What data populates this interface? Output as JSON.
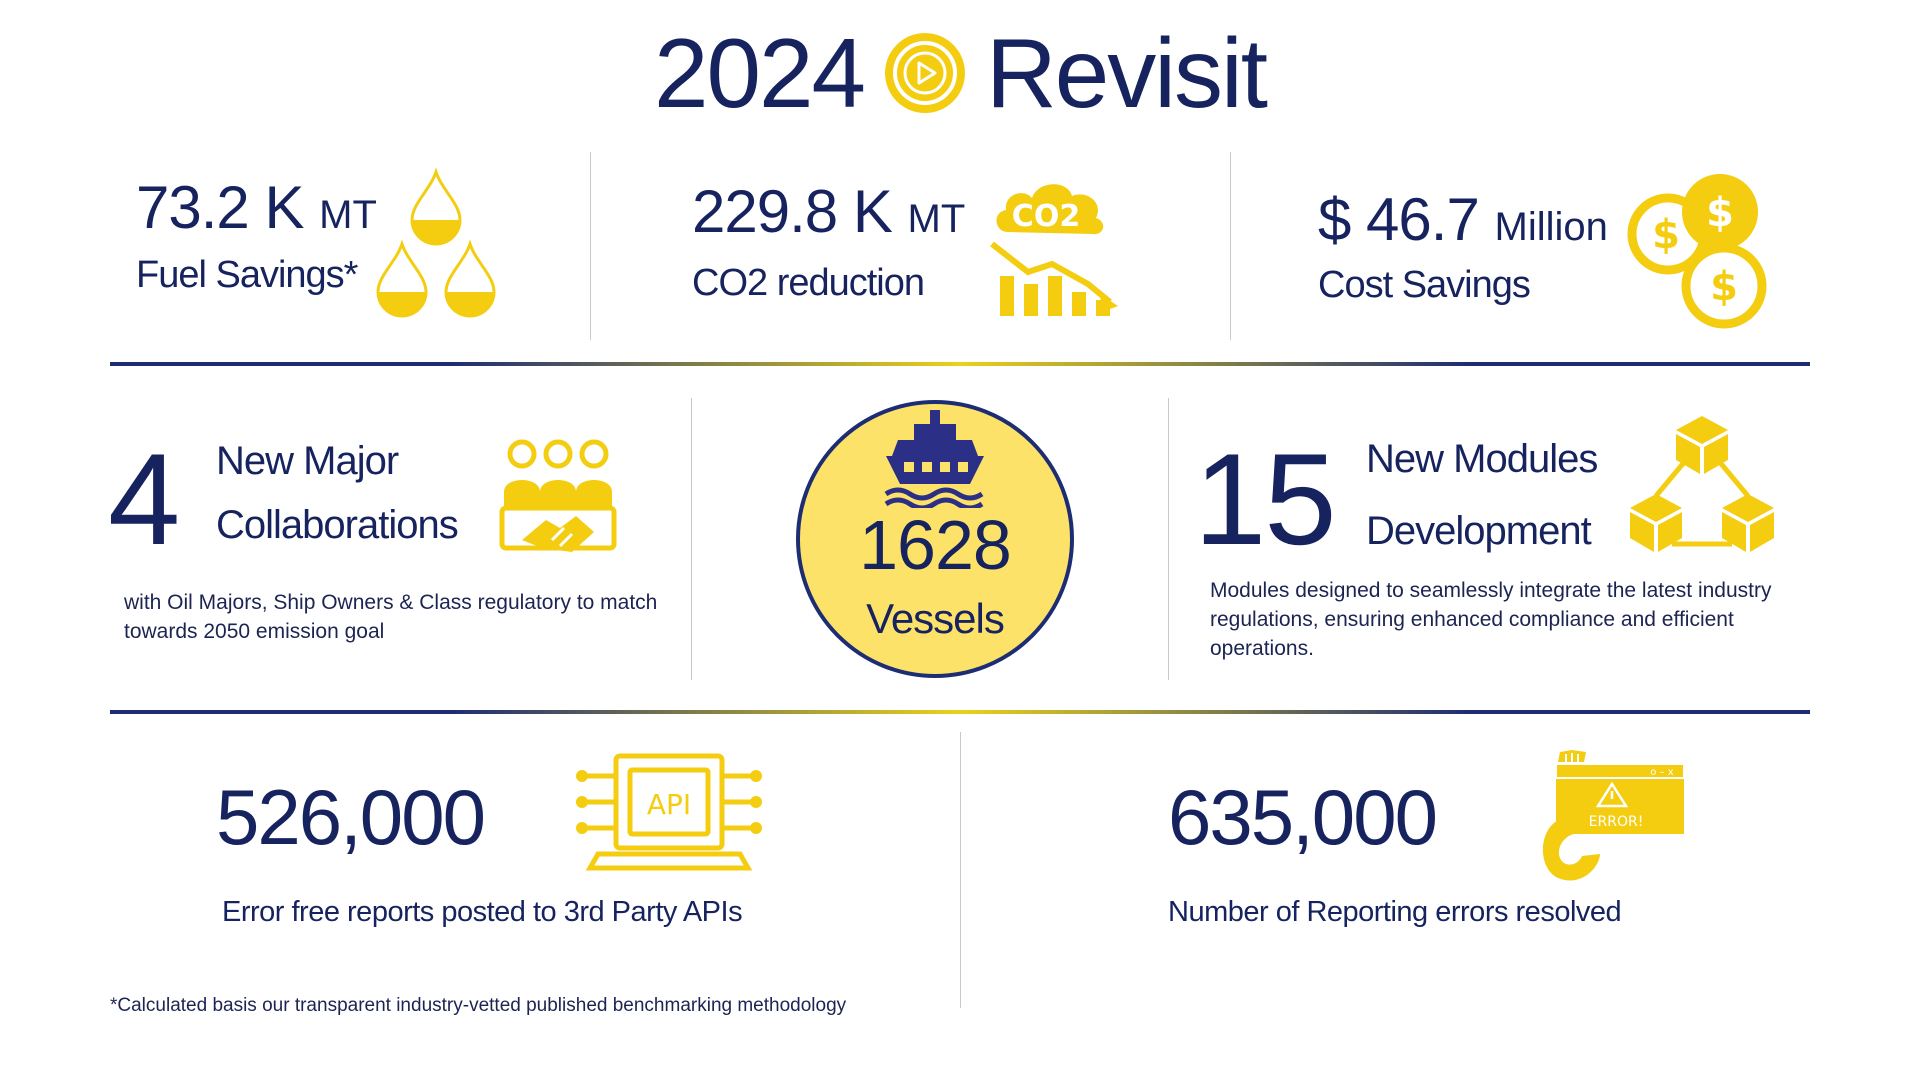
{
  "header": {
    "year": "2024",
    "word": "Revisit"
  },
  "fuel": {
    "value": "73.2 K",
    "unit": "MT",
    "label": "Fuel Savings*"
  },
  "co2": {
    "value": "229.8 K",
    "unit": "MT",
    "label": "CO2 reduction",
    "icon_text": "CO2"
  },
  "cost": {
    "value": "$ 46.7",
    "unit": "Million",
    "label": "Cost Savings"
  },
  "collab": {
    "number": "4",
    "title_line1": "New Major",
    "title_line2": "Collaborations",
    "description_line1": "with Oil Majors, Ship Owners & Class regulatory to match",
    "description_line2": "towards 2050 emission goal"
  },
  "vessels": {
    "number": "1628",
    "label": "Vessels"
  },
  "modules": {
    "number": "15",
    "title_line1": "New Modules",
    "title_line2": "Development",
    "description_line1": "Modules designed to seamlessly integrate the latest industry",
    "description_line2": "regulations, ensuring enhanced compliance and efficient",
    "description_line3": "operations."
  },
  "api_reports": {
    "number": "526,000",
    "label": "Error free reports posted to 3rd Party APIs",
    "icon_text": "API"
  },
  "errors_resolved": {
    "number": "635,000",
    "label": "Number of Reporting errors resolved",
    "icon_text": "ERROR!"
  },
  "footnote": "*Calculated basis our transparent industry-vetted published benchmarking methodology",
  "colors": {
    "navy": "#16235e",
    "yellow": "#f4cd11",
    "circle_fill": "#fde26a"
  },
  "icons": [
    "play-logo-icon",
    "oil-drops-icon",
    "co2-chart-icon",
    "coins-icon",
    "team-handshake-icon",
    "ship-icon",
    "cubes-icon",
    "api-chip-icon",
    "error-window-icon"
  ]
}
